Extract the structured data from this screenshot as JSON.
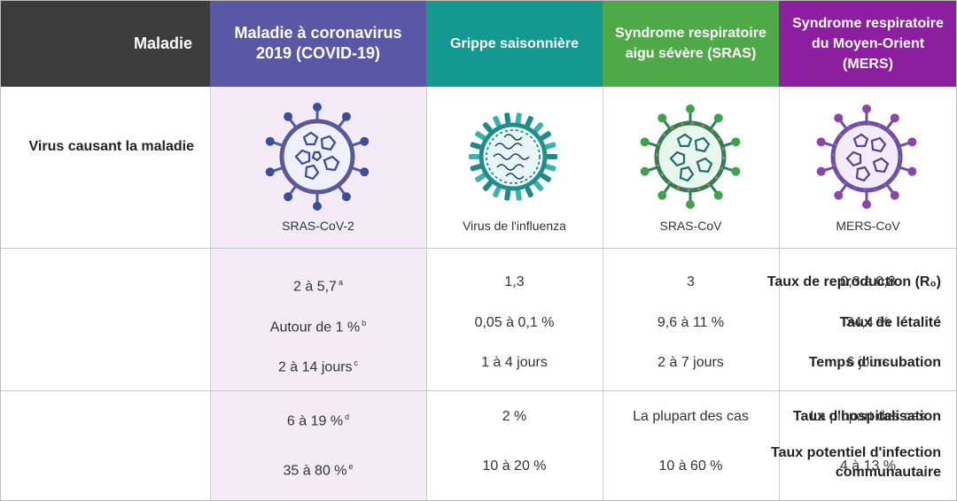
{
  "header": {
    "col0": "Maladie",
    "col1": "Maladie à coronavirus 2019 (COVID-19)",
    "col2": "Grippe saisonnière",
    "col3": "Syndrome respiratoire aigu sévère (SRAS)",
    "col4": "Syndrome respiratoire du Moyen-Orient (MERS)"
  },
  "colors": {
    "covid": "#5a57a6",
    "flu": "#13998f",
    "sras": "#4daa47",
    "mers": "#8b1f9f",
    "label_bg": "#3c3c3c"
  },
  "virus_row": {
    "label": "Virus causant la maladie",
    "names": [
      "SRAS-CoV-2",
      "Virus de l'influenza",
      "SRAS-CoV",
      "MERS-CoV"
    ],
    "icons": [
      "covid-virus-icon",
      "influenza-virus-icon",
      "sras-virus-icon",
      "mers-virus-icon"
    ]
  },
  "rows": [
    {
      "label": "Taux de reproduction (R₀)",
      "values": [
        "2 à 5,7",
        "1,3",
        "3",
        "0,3 à 0,8"
      ],
      "note": "a"
    },
    {
      "label": "Taux de létalité",
      "values": [
        "Autour de 1 %",
        "0,05 à 0,1 %",
        "9,6 à 11 %",
        "34,4 %"
      ],
      "note": "b"
    },
    {
      "label": "Temps d'incubation",
      "values": [
        "2 à 14 jours",
        "1 à 4 jours",
        "2 à 7 jours",
        "6 jours"
      ],
      "note": "c"
    },
    {
      "label": "Taux d'hospitalisation",
      "values": [
        "6 à 19 %",
        "2 %",
        "La plupart des cas",
        "La plupart des cas"
      ],
      "note": "d"
    },
    {
      "label": "Taux potentiel d'infection communautaire",
      "values": [
        "35 à 80 %",
        "10 à 20 %",
        "10 à 60 %",
        "4 à 13 %"
      ],
      "note": "e"
    }
  ]
}
